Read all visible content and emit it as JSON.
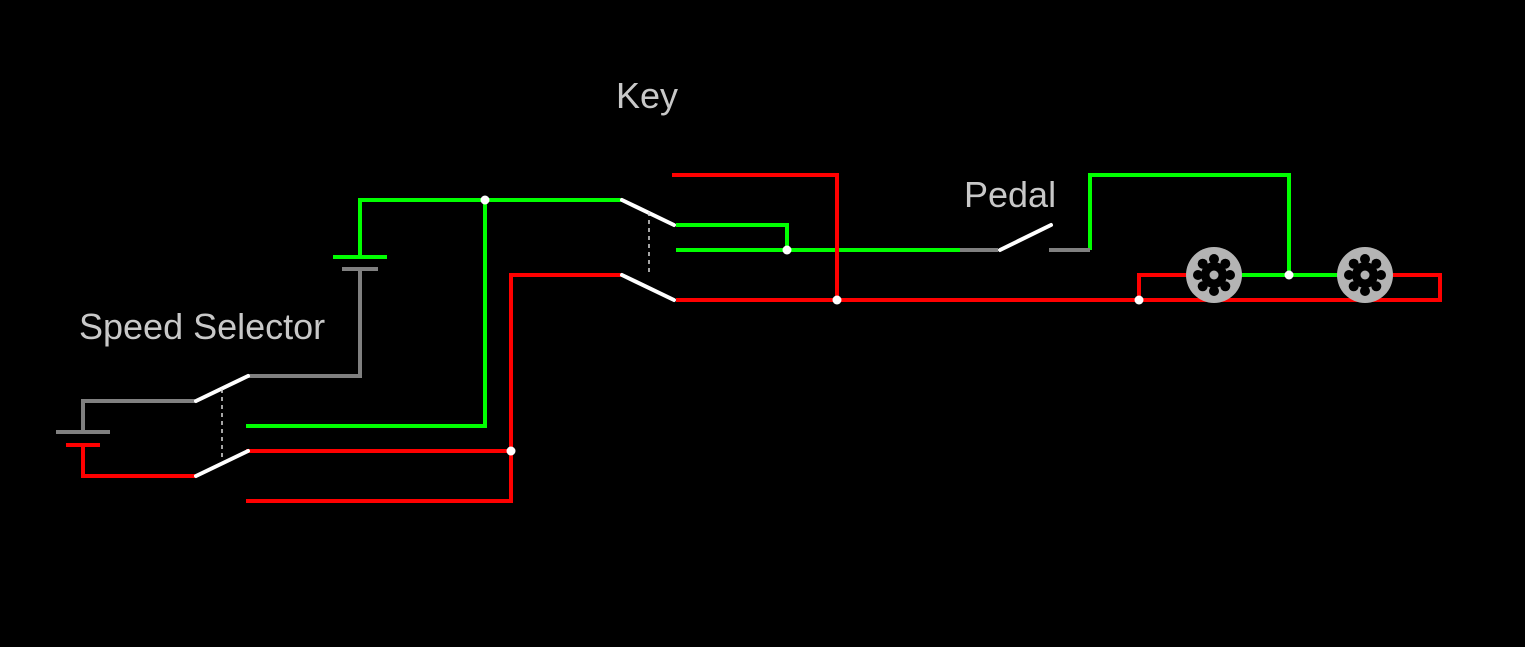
{
  "labels": {
    "key": "Key",
    "pedal": "Pedal",
    "speed_selector": "Speed Selector"
  },
  "colors": {
    "background": "#000000",
    "positive_wire": "#00ff00",
    "negative_wire": "#ff0000",
    "neutral_wire": "#808080",
    "switch_blade": "#ffffff",
    "motor": "#b4b4b4",
    "label_text": "#c8c8c8"
  },
  "components": {
    "batteries": 2,
    "switches": [
      "Speed Selector",
      "Key",
      "Pedal"
    ],
    "motors": 2
  }
}
